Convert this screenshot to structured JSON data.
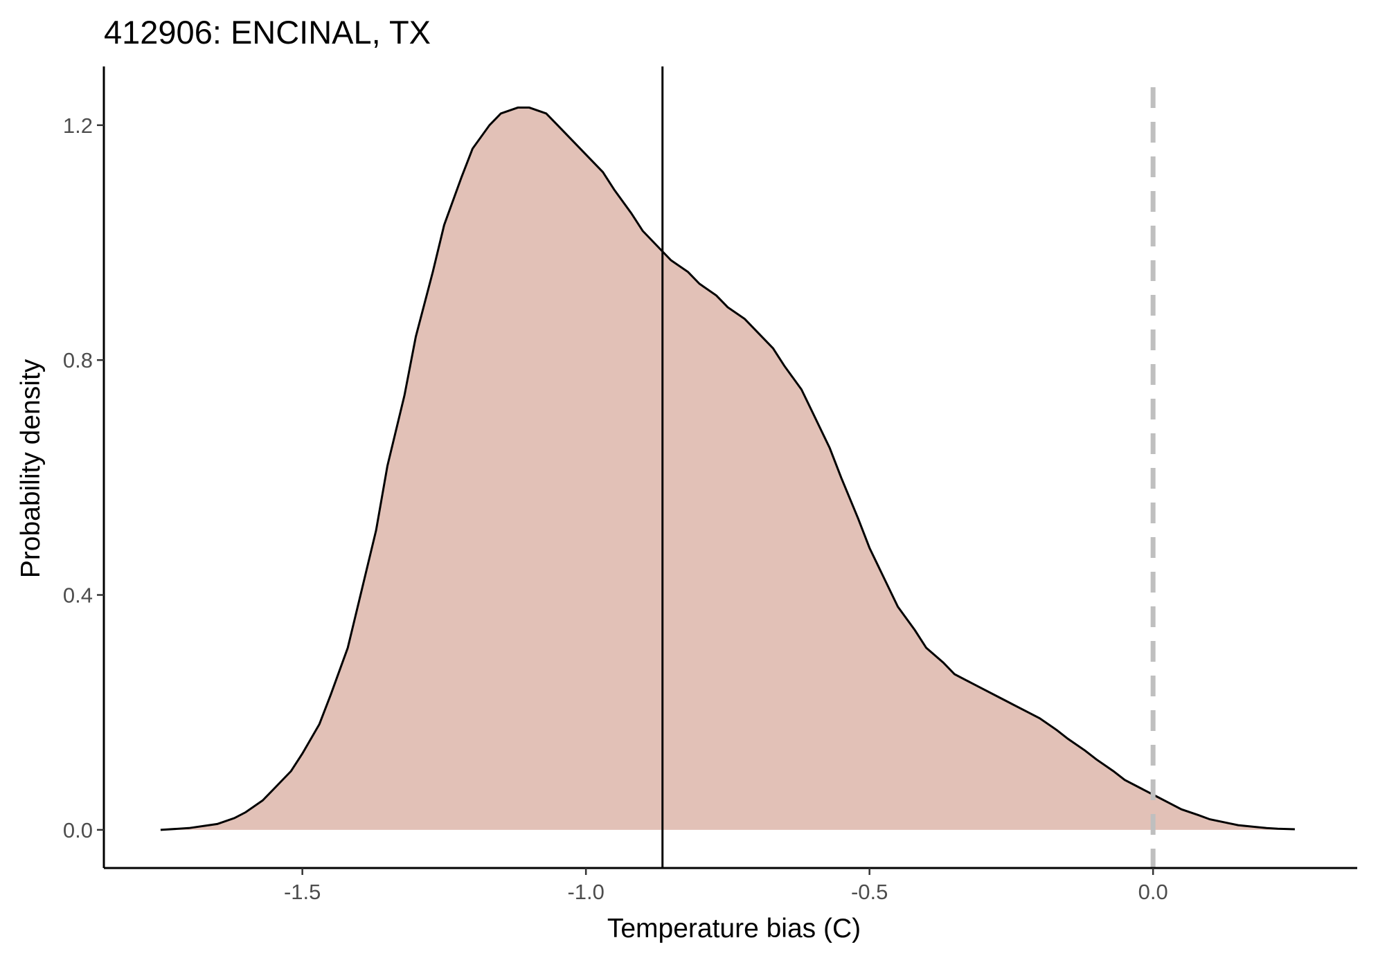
{
  "chart_data": {
    "type": "area",
    "title": "412906: ENCINAL, TX",
    "xlabel": "Temperature bias (C)",
    "ylabel": "Probability density",
    "xlim": [
      -1.85,
      0.36
    ],
    "ylim": [
      -0.065,
      1.3
    ],
    "x_ticks": [
      -1.5,
      -1.0,
      -0.5,
      0.0
    ],
    "x_tick_labels": [
      "-1.5",
      "-1.0",
      "-0.5",
      "0.0"
    ],
    "y_ticks": [
      0.0,
      0.4,
      0.8,
      1.2
    ],
    "y_tick_labels": [
      "0.0",
      "0.4",
      "0.8",
      "1.2"
    ],
    "grid": false,
    "legend": "none",
    "fill_color": "#e2c1b7",
    "line_color": "#000000",
    "mean_line_x": -0.865,
    "zero_line_x": 0.0,
    "zero_line_color": "#bfbfbf",
    "series": [
      {
        "x": [
          -1.75,
          -1.7,
          -1.65,
          -1.62,
          -1.6,
          -1.57,
          -1.55,
          -1.52,
          -1.5,
          -1.47,
          -1.45,
          -1.42,
          -1.4,
          -1.37,
          -1.35,
          -1.32,
          -1.3,
          -1.27,
          -1.25,
          -1.22,
          -1.2,
          -1.17,
          -1.15,
          -1.12,
          -1.1,
          -1.07,
          -1.05,
          -1.03,
          -1.0,
          -0.97,
          -0.95,
          -0.92,
          -0.9,
          -0.87,
          -0.85,
          -0.82,
          -0.8,
          -0.77,
          -0.75,
          -0.72,
          -0.7,
          -0.67,
          -0.65,
          -0.62,
          -0.6,
          -0.57,
          -0.55,
          -0.52,
          -0.5,
          -0.47,
          -0.45,
          -0.42,
          -0.4,
          -0.37,
          -0.35,
          -0.32,
          -0.3,
          -0.27,
          -0.25,
          -0.22,
          -0.2,
          -0.17,
          -0.15,
          -0.12,
          -0.1,
          -0.07,
          -0.05,
          -0.02,
          0.0,
          0.03,
          0.05,
          0.08,
          0.1,
          0.13,
          0.15,
          0.18,
          0.2,
          0.22,
          0.25
        ],
        "y": [
          0.0,
          0.003,
          0.01,
          0.02,
          0.03,
          0.05,
          0.07,
          0.1,
          0.13,
          0.18,
          0.23,
          0.31,
          0.39,
          0.51,
          0.62,
          0.74,
          0.84,
          0.95,
          1.03,
          1.11,
          1.16,
          1.2,
          1.22,
          1.23,
          1.23,
          1.22,
          1.2,
          1.18,
          1.15,
          1.12,
          1.09,
          1.05,
          1.02,
          0.99,
          0.97,
          0.95,
          0.93,
          0.91,
          0.89,
          0.87,
          0.85,
          0.82,
          0.79,
          0.75,
          0.71,
          0.65,
          0.6,
          0.53,
          0.48,
          0.42,
          0.38,
          0.34,
          0.31,
          0.285,
          0.265,
          0.25,
          0.24,
          0.225,
          0.215,
          0.2,
          0.19,
          0.17,
          0.155,
          0.135,
          0.12,
          0.1,
          0.085,
          0.07,
          0.06,
          0.045,
          0.035,
          0.025,
          0.018,
          0.012,
          0.008,
          0.005,
          0.003,
          0.002,
          0.001
        ]
      }
    ]
  }
}
